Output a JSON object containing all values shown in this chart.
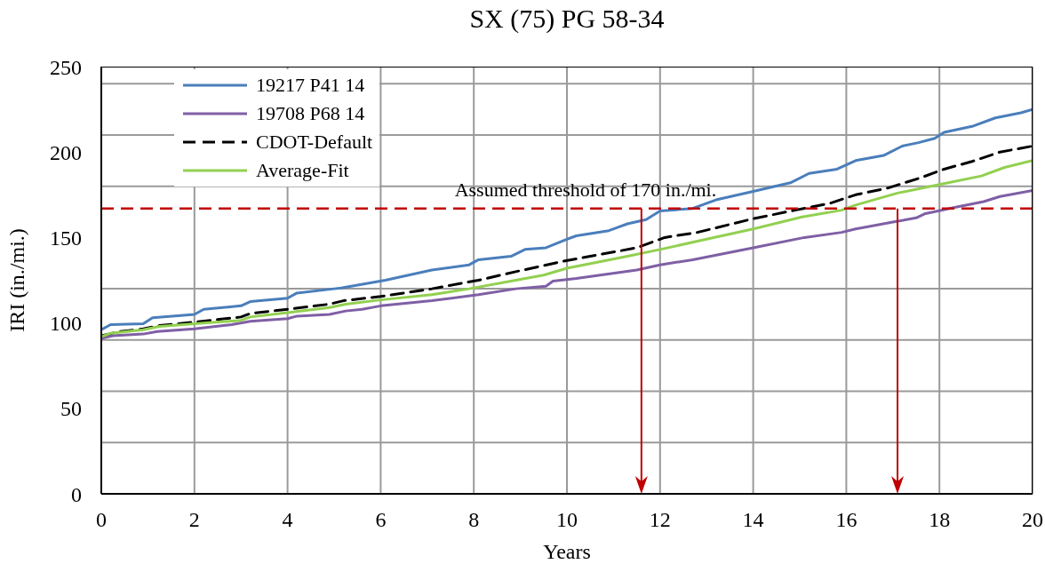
{
  "chart_data": {
    "type": "line",
    "title": "SX (75) PG 58-34",
    "xlabel": "Years",
    "ylabel": "IRI (in./mi.)",
    "xlim": [
      0,
      20
    ],
    "xticks": [
      0,
      2,
      4,
      6,
      8,
      10,
      12,
      14,
      16,
      18,
      20
    ],
    "ylim": [
      0,
      250
    ],
    "yticks": [
      0,
      {
        "value": 30,
        "label": null
      },
      50,
      {
        "value": 60,
        "label": null
      },
      {
        "value": 90,
        "label": null
      },
      100,
      {
        "value": 120,
        "label": null
      },
      150,
      {
        "value": 180,
        "label": null
      },
      200,
      {
        "value": 210,
        "label": null
      },
      {
        "value": 240,
        "label": null
      },
      250
    ],
    "grid": true,
    "legend": "top left",
    "marker": "none",
    "series": [
      {
        "name": "19217 P41 14",
        "color": "#4a7ebb",
        "line_style": "solid",
        "x": [
          0,
          0.2,
          0.9,
          1.1,
          2,
          2.2,
          3,
          3.2,
          4,
          4.2,
          5,
          5.15,
          6.1,
          7.1,
          7.9,
          8.1,
          8.8,
          9.1,
          9.55,
          10,
          10.2,
          10.9,
          11.3,
          11.7,
          12,
          12.7,
          13.2,
          14,
          14.8,
          15.2,
          15.8,
          16.2,
          16.8,
          17.2,
          17.55,
          17.9,
          18.1,
          18.7,
          19.2,
          19.75,
          20
        ],
        "values": [
          96,
          99,
          99.5,
          103,
          105,
          108,
          110,
          112.5,
          114.5,
          117.5,
          120,
          120.5,
          125,
          131,
          134,
          137,
          139,
          143,
          144,
          149,
          151,
          154,
          158,
          160.5,
          165.5,
          167,
          172,
          177,
          182,
          187.5,
          190,
          195,
          198,
          203.5,
          205.5,
          208,
          211.5,
          215,
          220,
          223,
          225
        ]
      },
      {
        "name": "19708 P68 14",
        "color": "#7f5fa5",
        "line_style": "solid",
        "x": [
          0,
          0.25,
          0.9,
          1.2,
          2,
          2.8,
          3.2,
          4,
          4.2,
          4.9,
          5.25,
          5.6,
          6,
          7.1,
          8.1,
          8.9,
          9.55,
          9.7,
          10.2,
          11.5,
          12,
          12.7,
          14,
          15.1,
          15.9,
          16.2,
          17,
          17.5,
          17.7,
          18.4,
          18.95,
          19.3,
          20
        ],
        "values": [
          91,
          92.5,
          93.5,
          95,
          96.5,
          99,
          101,
          102.5,
          104,
          105,
          107,
          108,
          110,
          113,
          116.5,
          120,
          121.5,
          124.5,
          126,
          131,
          134,
          137,
          144,
          150,
          153,
          155,
          159,
          161.5,
          164,
          168,
          171,
          174,
          177.5
        ]
      },
      {
        "name": "CDOT-Default",
        "color": "#000000",
        "line_style": "dashed",
        "x": [
          0,
          0.4,
          0.9,
          1.25,
          2,
          3,
          3.2,
          4,
          4.9,
          5.2,
          6,
          7.1,
          8.1,
          8.9,
          9.9,
          11.5,
          12.1,
          12.8,
          14,
          14.9,
          15.65,
          16.2,
          16.9,
          17.6,
          18.1,
          18.7,
          19.3,
          20
        ],
        "values": [
          92.5,
          95,
          96.5,
          98.5,
          100.5,
          103.5,
          105.5,
          108,
          111,
          113,
          115.5,
          120,
          125,
          130,
          136,
          144,
          150,
          153,
          161,
          166,
          170,
          175,
          179,
          185,
          190,
          194.5,
          200,
          203.5
        ]
      },
      {
        "name": "Average-Fit",
        "color": "#92d050",
        "line_style": "solid",
        "x": [
          0,
          0.2,
          0.9,
          1.25,
          2,
          3,
          3.2,
          4,
          4.9,
          5.25,
          6,
          7.1,
          7.9,
          8.9,
          9.5,
          10,
          11.3,
          12,
          13,
          14,
          15.05,
          15.9,
          16.2,
          17.1,
          18,
          18.9,
          19.4,
          20
        ],
        "values": [
          92,
          94,
          96,
          98,
          99.5,
          101.5,
          103.5,
          106,
          109,
          111,
          113.5,
          116.5,
          120,
          125,
          128,
          132,
          139,
          143,
          149,
          155,
          162,
          166,
          169,
          176,
          181,
          186,
          191,
          195
        ]
      }
    ],
    "ref_lines": [
      {
        "axis": "y",
        "value": 167,
        "color": "#c00000",
        "line_style": "dashed"
      },
      {
        "axis": "x",
        "value": 11.6,
        "color": "#c00000",
        "line_style": "solid"
      },
      {
        "axis": "x",
        "value": 17.1,
        "color": "#c00000",
        "line_style": "solid"
      }
    ],
    "annotations": [
      {
        "text": "Assumed threshold of 170 in./mi.",
        "x": 10.4,
        "y": 167
      }
    ]
  }
}
